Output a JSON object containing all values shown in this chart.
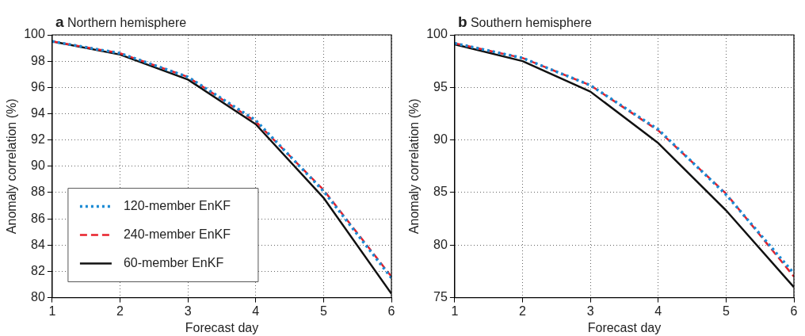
{
  "chart_data": [
    {
      "type": "line",
      "title": "a Northern hemisphere",
      "xlabel": "Forecast day",
      "ylabel": "Anomaly correlation (%)",
      "x": [
        1,
        2,
        3,
        4,
        5,
        6
      ],
      "series": [
        {
          "name": "120-member EnKF",
          "color": "#1a8ad4",
          "line_style": "dotted",
          "values": [
            99.5,
            98.6,
            96.8,
            93.5,
            88.1,
            81.5
          ]
        },
        {
          "name": "240-member EnKF",
          "color": "#e8202a",
          "line_style": "dashed",
          "values": [
            99.5,
            98.6,
            96.8,
            93.4,
            88.2,
            81.6
          ]
        },
        {
          "name": "60-member EnKF",
          "color": "#111111",
          "line_style": "solid",
          "values": [
            99.5,
            98.5,
            96.6,
            93.2,
            87.6,
            80.3
          ]
        }
      ],
      "xlim": [
        1,
        6
      ],
      "xticks": [
        1,
        2,
        3,
        4,
        5,
        6
      ],
      "ylim": [
        80,
        100
      ],
      "yticks": [
        80,
        82,
        84,
        86,
        88,
        90,
        92,
        94,
        96,
        98,
        100
      ],
      "grid": true,
      "legend": "bottom left",
      "marker": "none"
    },
    {
      "type": "line",
      "title": "b Southern hemisphere",
      "xlabel": "Forecast day",
      "ylabel": "Anomaly correlation (%)",
      "x": [
        1,
        2,
        3,
        4,
        5,
        6
      ],
      "series": [
        {
          "color": "#1a8ad4",
          "line_style": "dotted",
          "values": [
            99.2,
            97.8,
            95.2,
            91.0,
            84.8,
            77.3
          ]
        },
        {
          "color": "#e8202a",
          "line_style": "dashed",
          "values": [
            99.2,
            97.8,
            95.2,
            90.9,
            84.9,
            77.0
          ]
        },
        {
          "color": "#111111",
          "line_style": "solid",
          "values": [
            99.1,
            97.5,
            94.6,
            89.7,
            83.3,
            76.0
          ]
        }
      ],
      "xlim": [
        1,
        6
      ],
      "xticks": [
        1,
        2,
        3,
        4,
        5,
        6
      ],
      "ylim": [
        75,
        100
      ],
      "yticks": [
        75,
        80,
        85,
        90,
        95,
        100
      ],
      "grid": true,
      "legend": false,
      "marker": "none"
    }
  ]
}
